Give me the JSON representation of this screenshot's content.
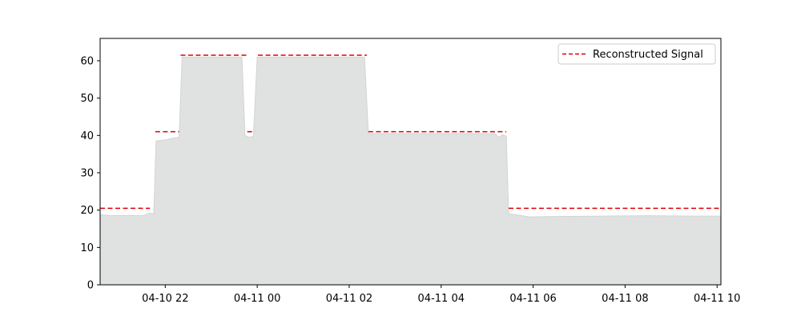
{
  "chart_data": {
    "type": "area",
    "title": "",
    "xlabel": "",
    "ylabel": "",
    "xlim": [
      "2024-04-10 20:35",
      "2024-04-11 10:05"
    ],
    "ylim": [
      0,
      66
    ],
    "x_ticks": [
      "04-10 22",
      "04-11 00",
      "04-11 02",
      "04-11 04",
      "04-11 06",
      "04-11 08",
      "04-11 10"
    ],
    "y_ticks": [
      0,
      10,
      20,
      30,
      40,
      50,
      60
    ],
    "legend_position": "top-right",
    "grid": false,
    "series": [
      {
        "type": "area",
        "color": "#e0e2e1",
        "points": [
          [
            "2024-04-10 20:35",
            18.8
          ],
          [
            "2024-04-10 20:50",
            18.5
          ],
          [
            "2024-04-10 21:10",
            18.6
          ],
          [
            "2024-04-10 21:30",
            18.5
          ],
          [
            "2024-04-10 21:40",
            19.2
          ],
          [
            "2024-04-10 21:45",
            19.0
          ],
          [
            "2024-04-10 21:48",
            38.5
          ],
          [
            "2024-04-10 22:00",
            38.8
          ],
          [
            "2024-04-10 22:10",
            39.3
          ],
          [
            "2024-04-10 22:18",
            39.5
          ],
          [
            "2024-04-10 22:22",
            61.0
          ],
          [
            "2024-04-10 23:00",
            61.0
          ],
          [
            "2024-04-10 23:40",
            61.0
          ],
          [
            "2024-04-10 23:44",
            40.0
          ],
          [
            "2024-04-10 23:50",
            39.5
          ],
          [
            "2024-04-10 23:55",
            39.8
          ],
          [
            "2024-04-11 00:00",
            61.0
          ],
          [
            "2024-04-11 01:00",
            61.0
          ],
          [
            "2024-04-11 02:20",
            61.0
          ],
          [
            "2024-04-11 02:25",
            40.5
          ],
          [
            "2024-04-11 03:30",
            40.5
          ],
          [
            "2024-04-11 04:30",
            40.5
          ],
          [
            "2024-04-11 05:10",
            40.5
          ],
          [
            "2024-04-11 05:15",
            39.5
          ],
          [
            "2024-04-11 05:20",
            40.2
          ],
          [
            "2024-04-11 05:25",
            39.8
          ],
          [
            "2024-04-11 05:28",
            19.0
          ],
          [
            "2024-04-11 05:40",
            18.7
          ],
          [
            "2024-04-11 05:55",
            18.2
          ],
          [
            "2024-04-11 06:30",
            18.3
          ],
          [
            "2024-04-11 07:30",
            18.4
          ],
          [
            "2024-04-11 08:30",
            18.5
          ],
          [
            "2024-04-11 09:30",
            18.4
          ],
          [
            "2024-04-11 10:05",
            18.4
          ]
        ]
      },
      {
        "type": "step-line",
        "name": "Reconstructed Signal",
        "color": "#dd0000",
        "dash": "dashed",
        "segments": [
          {
            "x": [
              "2024-04-10 20:35",
              "2024-04-10 21:40"
            ],
            "y": 20.5
          },
          {
            "x": [
              "2024-04-10 21:47",
              "2024-04-10 22:18"
            ],
            "y": 41
          },
          {
            "x": [
              "2024-04-10 22:20",
              "2024-04-10 23:47"
            ],
            "y": 61.5
          },
          {
            "x": [
              "2024-04-10 23:47",
              "2024-04-10 23:57"
            ],
            "y": 41
          },
          {
            "x": [
              "2024-04-11 00:01",
              "2024-04-11 02:23"
            ],
            "y": 61.5
          },
          {
            "x": [
              "2024-04-11 02:25",
              "2024-04-11 05:25"
            ],
            "y": 41
          },
          {
            "x": [
              "2024-04-11 05:28",
              "2024-04-11 10:05"
            ],
            "y": 20.5
          }
        ]
      }
    ]
  }
}
